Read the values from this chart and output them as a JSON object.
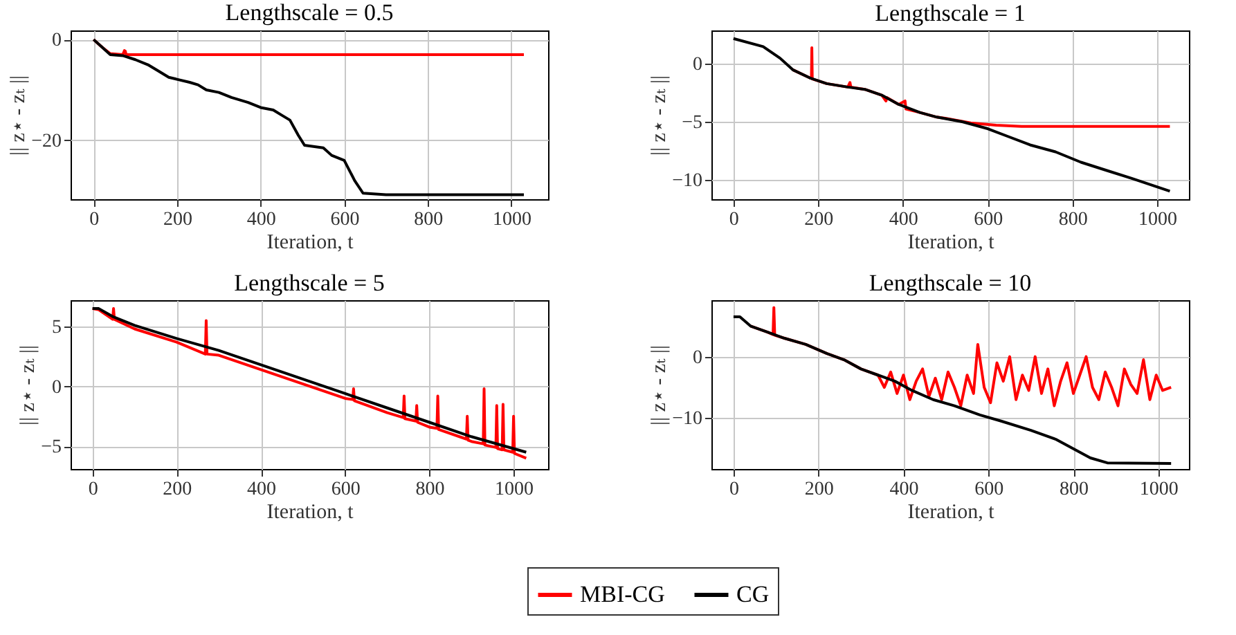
{
  "chart_data": [
    {
      "type": "line",
      "title": "Lengthscale = 0.5",
      "xlabel": "Iteration, t",
      "ylabel": "|| z⋆ - zₜ ||",
      "xlim": [
        -55,
        1088
      ],
      "ylim": [
        -31.7,
        1.8
      ],
      "xticks": [
        0,
        200,
        400,
        600,
        800,
        1000
      ],
      "yticks": [
        0,
        -20
      ],
      "grid": true,
      "legend": "bottom",
      "series": [
        {
          "name": "MBI-CG",
          "color": "#ff0000",
          "x": [
            0,
            20,
            40,
            70,
            74,
            76,
            78,
            200,
            600,
            1030
          ],
          "values": [
            0,
            -1.5,
            -2.8,
            -3,
            -2.2,
            -2.3,
            -3,
            -3,
            -3,
            -3
          ]
        },
        {
          "name": "CG",
          "color": "#000000",
          "x": [
            0,
            20,
            40,
            70,
            100,
            130,
            150,
            180,
            230,
            250,
            270,
            300,
            330,
            370,
            400,
            430,
            450,
            470,
            490,
            505,
            550,
            570,
            600,
            625,
            645,
            700,
            1030
          ],
          "values": [
            0,
            -1.5,
            -3,
            -3.2,
            -4,
            -5,
            -6,
            -7.5,
            -8.5,
            -9,
            -10,
            -10.5,
            -11.5,
            -12.5,
            -13.5,
            -14,
            -15,
            -16,
            -19,
            -21,
            -21.5,
            -23,
            -24,
            -28,
            -30.5,
            -30.8,
            -30.8
          ]
        }
      ]
    },
    {
      "type": "line",
      "title": "Lengthscale = 1",
      "xlabel": "Iteration, t",
      "ylabel": "|| z⋆ - zₜ ||",
      "xlim": [
        -52,
        1075
      ],
      "ylim": [
        -11.7,
        2.9
      ],
      "xticks": [
        0,
        200,
        400,
        600,
        800,
        1000
      ],
      "yticks": [
        0,
        -5,
        -10
      ],
      "grid": true,
      "legend": "bottom",
      "series": [
        {
          "name": "MBI-CG",
          "color": "#ff0000",
          "x": [
            140,
            180,
            184,
            185,
            186,
            220,
            270,
            275,
            277,
            310,
            350,
            360,
            362,
            390,
            405,
            407,
            440,
            480,
            500,
            560,
            620,
            680,
            1030
          ],
          "values": [
            -0.5,
            -1.2,
            -1.2,
            1.4,
            -1.3,
            -1.7,
            -2,
            -1.6,
            -2,
            -2.2,
            -2.7,
            -3.2,
            -2.9,
            -3.5,
            -3.2,
            -3.9,
            -4.2,
            -4.6,
            -4.7,
            -5.1,
            -5.3,
            -5.4,
            -5.4
          ]
        },
        {
          "name": "CG",
          "color": "#000000",
          "x": [
            0,
            70,
            110,
            140,
            180,
            220,
            270,
            310,
            350,
            390,
            440,
            480,
            540,
            600,
            650,
            700,
            760,
            820,
            880,
            940,
            1030
          ],
          "values": [
            2.2,
            1.5,
            0.5,
            -0.5,
            -1.2,
            -1.7,
            -2,
            -2.2,
            -2.7,
            -3.5,
            -4.2,
            -4.6,
            -5,
            -5.6,
            -6.3,
            -7,
            -7.6,
            -8.5,
            -9.2,
            -9.9,
            -11
          ]
        }
      ]
    },
    {
      "type": "line",
      "title": "Lengthscale = 5",
      "xlabel": "Iteration, t",
      "ylabel": "|| z⋆ - zₜ ||",
      "xlim": [
        -52,
        1082
      ],
      "ylim": [
        -6.9,
        7.2
      ],
      "xticks": [
        0,
        200,
        400,
        600,
        800,
        1000
      ],
      "yticks": [
        5,
        0,
        -5
      ],
      "grid": true,
      "legend": "bottom",
      "series": [
        {
          "name": "MBI-CG",
          "color": "#ff0000",
          "x": [
            0,
            15,
            48,
            50,
            52,
            100,
            200,
            268,
            270,
            272,
            300,
            400,
            500,
            600,
            618,
            620,
            622,
            700,
            738,
            740,
            742,
            768,
            770,
            772,
            800,
            818,
            820,
            822,
            888,
            890,
            892,
            900,
            928,
            930,
            932,
            958,
            960,
            962,
            973,
            975,
            977,
            998,
            1000,
            1002,
            1030
          ],
          "values": [
            6.5,
            6.4,
            5.6,
            6.5,
            5.6,
            4.8,
            3.7,
            2.7,
            5.5,
            2.7,
            2.6,
            1.4,
            0.2,
            -1,
            -1.1,
            -0.2,
            -1.2,
            -2.2,
            -2.6,
            -0.8,
            -2.7,
            -2.9,
            -1.6,
            -3,
            -3.4,
            -3.5,
            -0.8,
            -3.6,
            -4.4,
            -2.5,
            -4.5,
            -4.6,
            -4.8,
            -0.2,
            -4.9,
            -5.1,
            -1.6,
            -5.2,
            -5.3,
            -1.5,
            -5.3,
            -5.5,
            -2.5,
            -5.6,
            -6
          ]
        },
        {
          "name": "CG",
          "color": "#000000",
          "x": [
            0,
            15,
            50,
            100,
            200,
            300,
            400,
            500,
            600,
            700,
            800,
            900,
            1030
          ],
          "values": [
            6.5,
            6.5,
            5.8,
            5.1,
            4,
            3,
            1.8,
            0.6,
            -0.6,
            -1.8,
            -3,
            -4.2,
            -5.5
          ]
        }
      ]
    },
    {
      "type": "line",
      "title": "Lengthscale = 10",
      "xlabel": "Iteration, t",
      "ylabel": "|| z⋆ - zₜ ||",
      "xlim": [
        -52,
        1072
      ],
      "ylim": [
        -18.3,
        9.2
      ],
      "xticks": [
        0,
        200,
        400,
        600,
        800,
        1000
      ],
      "yticks": [
        0,
        -10
      ],
      "grid": true,
      "legend": "bottom",
      "series": [
        {
          "name": "MBI-CG",
          "color": "#ff0000",
          "x": [
            40,
            80,
            93,
            95,
            97,
            120,
            170,
            220,
            260,
            300,
            340,
            355,
            370,
            385,
            400,
            415,
            430,
            445,
            460,
            475,
            490,
            505,
            520,
            535,
            550,
            565,
            575,
            590,
            605,
            620,
            635,
            650,
            665,
            680,
            695,
            710,
            725,
            740,
            755,
            770,
            785,
            800,
            815,
            830,
            845,
            860,
            875,
            890,
            905,
            920,
            935,
            950,
            965,
            980,
            995,
            1010,
            1030
          ],
          "values": [
            5,
            4,
            3.6,
            8,
            3.5,
            3,
            2,
            0.5,
            -0.5,
            -2,
            -3,
            -5,
            -2.5,
            -6,
            -3,
            -7,
            -4,
            -2,
            -6.5,
            -3.5,
            -7,
            -2.5,
            -5,
            -8,
            -3,
            -6,
            2,
            -5,
            -7.5,
            -1,
            -4,
            0,
            -7,
            -3,
            -5.5,
            0,
            -6,
            -2,
            -8,
            -4,
            -1,
            -6,
            -3,
            0,
            -5,
            -7,
            -2.5,
            -5,
            -8,
            -2,
            -4.5,
            -6,
            -0.5,
            -7,
            -3,
            -5.5,
            -5
          ]
        },
        {
          "name": "CG",
          "color": "#000000",
          "x": [
            0,
            15,
            40,
            80,
            120,
            170,
            220,
            260,
            300,
            340,
            380,
            420,
            470,
            520,
            580,
            630,
            700,
            760,
            800,
            840,
            880,
            1030
          ],
          "values": [
            6.5,
            6.5,
            5,
            4,
            3,
            2,
            0.5,
            -0.5,
            -2,
            -3,
            -4,
            -5.5,
            -7,
            -8,
            -9.5,
            -10.5,
            -12,
            -13.5,
            -15,
            -16.5,
            -17.3,
            -17.4
          ]
        }
      ]
    }
  ]
}
